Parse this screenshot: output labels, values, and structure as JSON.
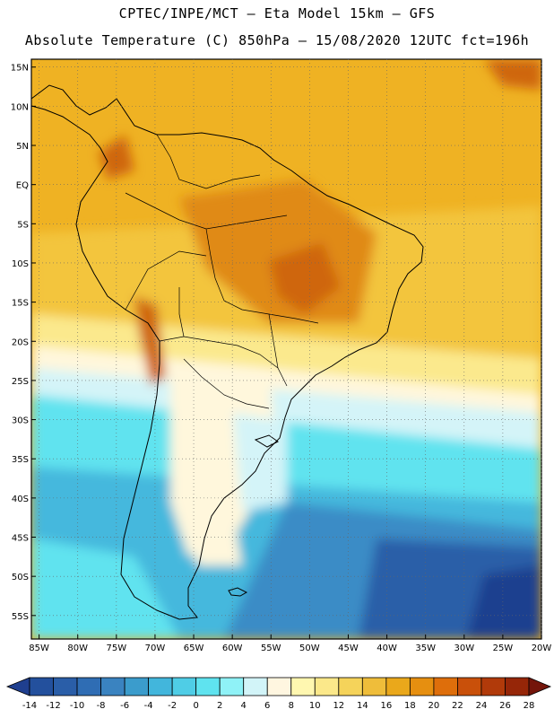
{
  "header": {
    "line1": "CPTEC/INPE/MCT –  Eta Model 15km – GFS",
    "line2": "Absolute Temperature (C) 850hPa – 15/08/2020 12UTC fct=196h"
  },
  "axes": {
    "lat_labels": [
      "15N",
      "10N",
      "5N",
      "EQ",
      "5S",
      "10S",
      "15S",
      "20S",
      "25S",
      "30S",
      "35S",
      "40S",
      "45S",
      "50S",
      "55S"
    ],
    "lon_labels": [
      "85W",
      "80W",
      "75W",
      "70W",
      "65W",
      "60W",
      "55W",
      "50W",
      "45W",
      "40W",
      "35W",
      "30W",
      "25W",
      "20W"
    ],
    "lat_range": [
      -58,
      16
    ],
    "lon_range": [
      -86,
      -20
    ]
  },
  "colorbar": {
    "labels": [
      "-14",
      "-12",
      "-10",
      "-8",
      "-6",
      "-4",
      "-2",
      "0",
      "2",
      "4",
      "6",
      "8",
      "10",
      "12",
      "14",
      "16",
      "18",
      "20",
      "22",
      "24",
      "26",
      "28"
    ],
    "colors": [
      "#1f3f8f",
      "#23509d",
      "#2a5ea8",
      "#2f6db4",
      "#3a83c0",
      "#3b9ccc",
      "#42b6dc",
      "#4fcde6",
      "#5fe3ef",
      "#8ff2f7",
      "#d2f4f8",
      "#fff6e0",
      "#fff7b0",
      "#fbe88a",
      "#f5d35a",
      "#efbd3a",
      "#eaa81b",
      "#e68f10",
      "#de6e0b",
      "#c9500a",
      "#b13a0a",
      "#962608",
      "#74150a"
    ]
  },
  "map": {
    "colors": {
      "ocean_north": "#efb223",
      "ocean_warm": "#f3c53e",
      "pale_yellow": "#fbe98d",
      "cream": "#fff7dc",
      "ice": "#d4f4f8",
      "cyan": "#60e3ef",
      "sky": "#45b8dd",
      "blue": "#3a8cc6",
      "deep": "#2a5ea8",
      "navy": "#1f3f8f",
      "hot": "#e08a14",
      "hotter": "#cf6611",
      "coast": "#000000"
    }
  }
}
